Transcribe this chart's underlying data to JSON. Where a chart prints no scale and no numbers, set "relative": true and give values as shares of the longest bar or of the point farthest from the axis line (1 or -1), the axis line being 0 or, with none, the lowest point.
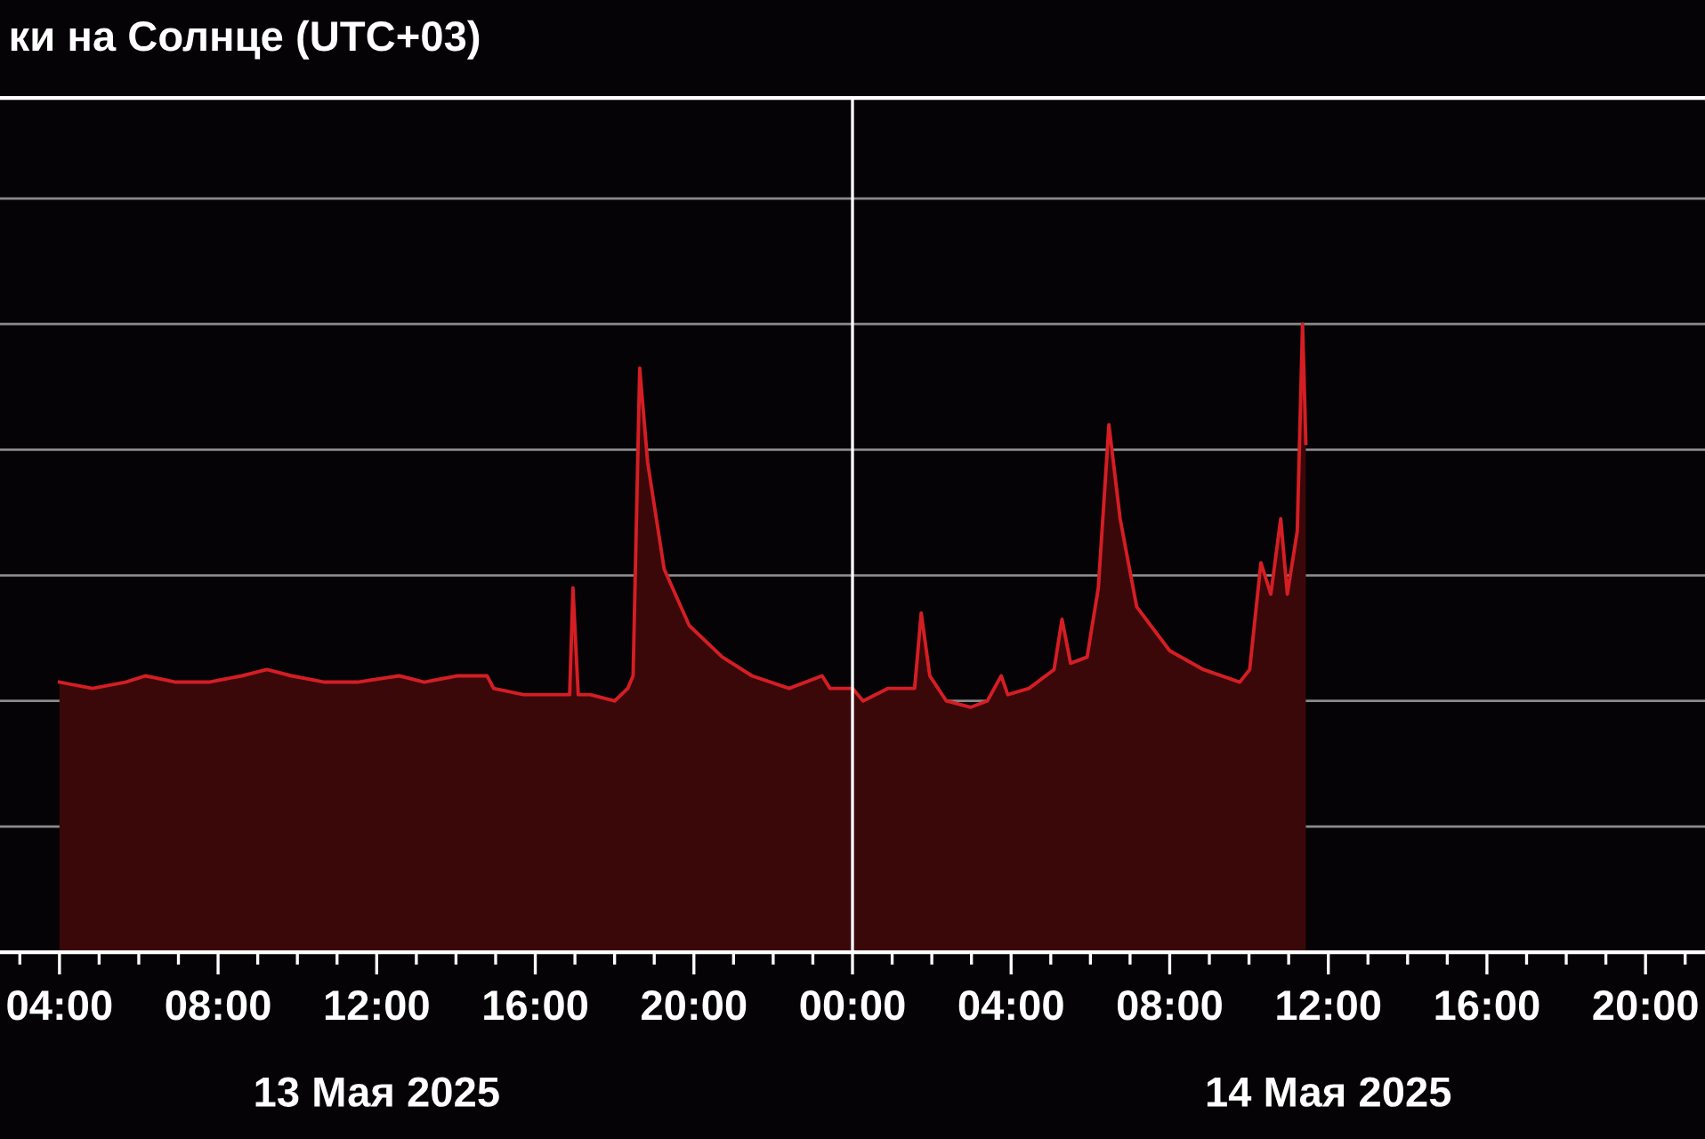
{
  "chart_data": {
    "type": "area",
    "title": "ки на Солнце (UTC+03)",
    "relative": true,
    "x": [
      "2025-05-13T04:00",
      "2025-05-13T04:50",
      "2025-05-13T05:40",
      "2025-05-13T06:10",
      "2025-05-13T06:56",
      "2025-05-13T07:46",
      "2025-05-13T08:36",
      "2025-05-13T09:14",
      "2025-05-13T09:51",
      "2025-05-13T10:41",
      "2025-05-13T11:31",
      "2025-05-13T12:34",
      "2025-05-13T13:12",
      "2025-05-13T14:02",
      "2025-05-13T14:47",
      "2025-05-13T14:57",
      "2025-05-13T15:42",
      "2025-05-13T16:32",
      "2025-05-13T16:52",
      "2025-05-13T16:57",
      "2025-05-13T17:05",
      "2025-05-13T17:23",
      "2025-05-13T18:00",
      "2025-05-13T18:20",
      "2025-05-13T18:28",
      "2025-05-13T18:38",
      "2025-05-13T18:50",
      "2025-05-13T19:15",
      "2025-05-13T19:53",
      "2025-05-13T20:43",
      "2025-05-13T21:28",
      "2025-05-13T22:24",
      "2025-05-13T23:14",
      "2025-05-13T23:26",
      "2025-05-14T00:00",
      "2025-05-14T00:16",
      "2025-05-14T00:54",
      "2025-05-14T01:19",
      "2025-05-14T01:34",
      "2025-05-14T01:44",
      "2025-05-14T01:57",
      "2025-05-14T02:22",
      "2025-05-14T02:59",
      "2025-05-14T03:24",
      "2025-05-14T03:45",
      "2025-05-14T03:55",
      "2025-05-14T04:27",
      "2025-05-14T05:05",
      "2025-05-14T05:17",
      "2025-05-14T05:30",
      "2025-05-14T05:55",
      "2025-05-14T06:12",
      "2025-05-14T06:28",
      "2025-05-14T06:45",
      "2025-05-14T07:10",
      "2025-05-14T08:00",
      "2025-05-14T08:51",
      "2025-05-14T09:46",
      "2025-05-14T10:01",
      "2025-05-14T10:18",
      "2025-05-14T10:33",
      "2025-05-14T10:48",
      "2025-05-14T10:58",
      "2025-05-14T11:13",
      "2025-05-14T11:21",
      "2025-05-14T11:26"
    ],
    "series": [
      {
        "color": "#d41e24",
        "values": [
          0.43,
          0.42,
          0.43,
          0.44,
          0.43,
          0.43,
          0.44,
          0.45,
          0.44,
          0.43,
          0.43,
          0.44,
          0.43,
          0.44,
          0.44,
          0.42,
          0.41,
          0.41,
          0.41,
          0.58,
          0.41,
          0.41,
          0.4,
          0.42,
          0.44,
          0.93,
          0.78,
          0.61,
          0.52,
          0.47,
          0.44,
          0.42,
          0.44,
          0.42,
          0.42,
          0.4,
          0.42,
          0.42,
          0.42,
          0.54,
          0.44,
          0.4,
          0.39,
          0.4,
          0.44,
          0.41,
          0.42,
          0.45,
          0.53,
          0.46,
          0.47,
          0.58,
          0.84,
          0.69,
          0.55,
          0.48,
          0.45,
          0.43,
          0.45,
          0.62,
          0.57,
          0.69,
          0.57,
          0.67,
          1,
          0.81
        ]
      }
    ],
    "xlim": [
      "2025-05-13T02:30",
      "2025-05-14T21:30"
    ],
    "xticks": [
      {
        "value": "2025-05-13T04:00",
        "label": "04:00"
      },
      {
        "value": "2025-05-13T08:00",
        "label": "08:00"
      },
      {
        "value": "2025-05-13T12:00",
        "label": "12:00"
      },
      {
        "value": "2025-05-13T16:00",
        "label": "16:00"
      },
      {
        "value": "2025-05-13T20:00",
        "label": "20:00"
      },
      {
        "value": "2025-05-14T00:00",
        "label": "00:00"
      },
      {
        "value": "2025-05-14T04:00",
        "label": "04:00"
      },
      {
        "value": "2025-05-14T08:00",
        "label": "08:00"
      },
      {
        "value": "2025-05-14T12:00",
        "label": "12:00"
      },
      {
        "value": "2025-05-14T16:00",
        "label": "16:00"
      },
      {
        "value": "2025-05-14T20:00",
        "label": "20:00"
      }
    ],
    "ref_lines": [
      {
        "axis": "x",
        "value": "2025-05-14T00:00",
        "color": "#ffffff"
      }
    ],
    "annotations": [
      "13 Мая 2025",
      "14 Мая 2025"
    ],
    "grid": "y",
    "legend": false,
    "tick_labels": "x"
  }
}
